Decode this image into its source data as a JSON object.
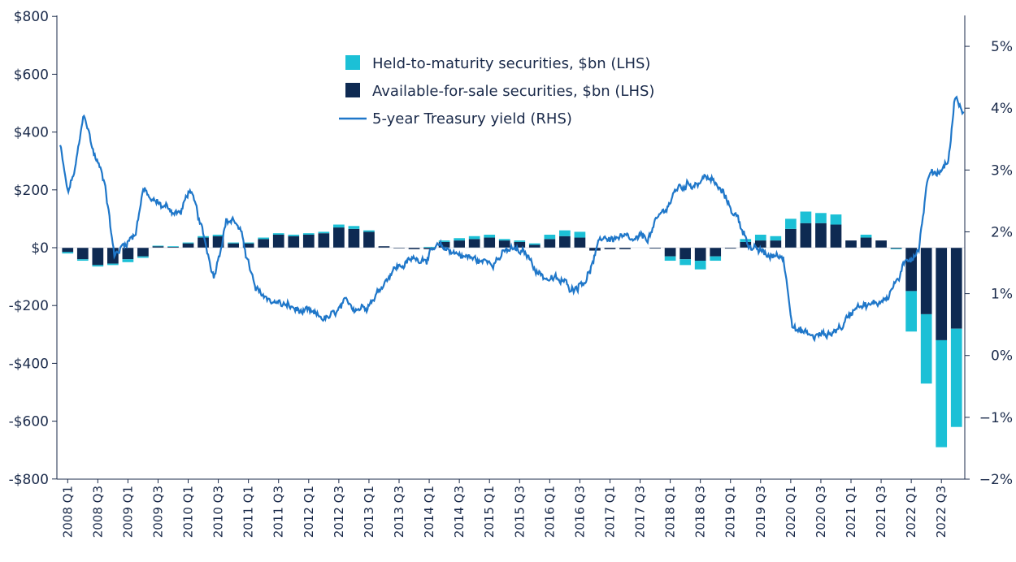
{
  "chart_data": {
    "type": "bar",
    "subtype": "stacked bar with line overlay",
    "colors": {
      "htm": "#1CC0D6",
      "afs": "#0E2A52",
      "yield": "#1F77C9",
      "axis": "#1a2a4a"
    },
    "legend": [
      {
        "key": "htm",
        "label": "Held-to-maturity securities, $bn (LHS)",
        "marker": "square"
      },
      {
        "key": "afs",
        "label": "Available-for-sale securities, $bn (LHS)",
        "marker": "square"
      },
      {
        "key": "yield",
        "label": "5-year Treasury yield (RHS)",
        "marker": "line"
      }
    ],
    "y_left": {
      "range": [
        -800,
        800
      ],
      "ticks": [
        800,
        600,
        400,
        200,
        0,
        -200,
        -400,
        -600,
        -800
      ],
      "tick_labels": [
        "$800",
        "$600",
        "$400",
        "$200",
        "$0",
        "-$200",
        "-$400",
        "-$600",
        "-$800"
      ]
    },
    "y_right": {
      "range": [
        -2,
        5.5
      ],
      "ticks": [
        5,
        4,
        3,
        2,
        1,
        0,
        -1,
        -2
      ],
      "tick_labels": [
        "5%",
        "4%",
        "3%",
        "2%",
        "1%",
        "0%",
        "−1%",
        "−2%"
      ]
    },
    "x_tick_labels": [
      "2008 Q1",
      "2008 Q3",
      "2009 Q1",
      "2009 Q3",
      "2010 Q1",
      "2010 Q3",
      "2011 Q1",
      "2011 Q3",
      "2012 Q1",
      "2012 Q3",
      "2013 Q1",
      "2013 Q3",
      "2014 Q1",
      "2014 Q3",
      "2015 Q1",
      "2015 Q3",
      "2016 Q1",
      "2016 Q3",
      "2017 Q1",
      "2017 Q3",
      "2018 Q1",
      "2018 Q3",
      "2019 Q1",
      "2019 Q3",
      "2020 Q1",
      "2020 Q3",
      "2021 Q1",
      "2021 Q3",
      "2022 Q1",
      "2022 Q3"
    ],
    "quarters": [
      "2008 Q1",
      "2008 Q2",
      "2008 Q3",
      "2008 Q4",
      "2009 Q1",
      "2009 Q2",
      "2009 Q3",
      "2009 Q4",
      "2010 Q1",
      "2010 Q2",
      "2010 Q3",
      "2010 Q4",
      "2011 Q1",
      "2011 Q2",
      "2011 Q3",
      "2011 Q4",
      "2012 Q1",
      "2012 Q2",
      "2012 Q3",
      "2012 Q4",
      "2013 Q1",
      "2013 Q2",
      "2013 Q3",
      "2013 Q4",
      "2014 Q1",
      "2014 Q2",
      "2014 Q3",
      "2014 Q4",
      "2015 Q1",
      "2015 Q2",
      "2015 Q3",
      "2015 Q4",
      "2016 Q1",
      "2016 Q2",
      "2016 Q3",
      "2016 Q4",
      "2017 Q1",
      "2017 Q2",
      "2017 Q3",
      "2017 Q4",
      "2018 Q1",
      "2018 Q2",
      "2018 Q3",
      "2018 Q4",
      "2019 Q1",
      "2019 Q2",
      "2019 Q3",
      "2019 Q4",
      "2020 Q1",
      "2020 Q2",
      "2020 Q3",
      "2020 Q4",
      "2021 Q1",
      "2021 Q2",
      "2021 Q3",
      "2021 Q4",
      "2022 Q1",
      "2022 Q2",
      "2022 Q3",
      "2022 Q4"
    ],
    "afs": [
      -15,
      -40,
      -60,
      -55,
      -40,
      -30,
      5,
      3,
      15,
      35,
      40,
      15,
      15,
      30,
      45,
      40,
      45,
      50,
      70,
      65,
      55,
      5,
      -2,
      -5,
      -5,
      20,
      25,
      30,
      35,
      25,
      20,
      10,
      30,
      40,
      35,
      -10,
      -5,
      -5,
      0,
      -3,
      -30,
      -40,
      -45,
      -30,
      -3,
      20,
      25,
      25,
      65,
      85,
      85,
      80,
      25,
      35,
      25,
      -3,
      -150,
      -230,
      -320,
      -280
    ],
    "htm": [
      -5,
      -5,
      -5,
      -5,
      -10,
      -5,
      2,
      2,
      3,
      5,
      5,
      3,
      3,
      5,
      5,
      5,
      5,
      5,
      10,
      10,
      5,
      0,
      0,
      0,
      3,
      5,
      8,
      10,
      10,
      5,
      5,
      5,
      15,
      20,
      20,
      0,
      0,
      0,
      0,
      0,
      -15,
      -20,
      -30,
      -15,
      0,
      10,
      20,
      15,
      35,
      40,
      35,
      35,
      0,
      10,
      0,
      -2,
      -140,
      -240,
      -370,
      -340
    ],
    "yield_anchors": [
      {
        "q": 0.0,
        "v": 3.4
      },
      {
        "q": 0.5,
        "v": 2.6
      },
      {
        "q": 1.0,
        "v": 3.0
      },
      {
        "q": 1.6,
        "v": 3.9
      },
      {
        "q": 2.2,
        "v": 3.3
      },
      {
        "q": 3.0,
        "v": 2.8
      },
      {
        "q": 3.6,
        "v": 1.6
      },
      {
        "q": 4.2,
        "v": 1.8
      },
      {
        "q": 5.0,
        "v": 2.0
      },
      {
        "q": 5.5,
        "v": 2.7
      },
      {
        "q": 6.0,
        "v": 2.5
      },
      {
        "q": 7.0,
        "v": 2.4
      },
      {
        "q": 8.0,
        "v": 2.3
      },
      {
        "q": 8.6,
        "v": 2.7
      },
      {
        "q": 9.4,
        "v": 2.0
      },
      {
        "q": 10.2,
        "v": 1.3
      },
      {
        "q": 11.0,
        "v": 2.2
      },
      {
        "q": 11.6,
        "v": 2.2
      },
      {
        "q": 12.2,
        "v": 1.8
      },
      {
        "q": 13.0,
        "v": 1.0
      },
      {
        "q": 14.0,
        "v": 0.9
      },
      {
        "q": 15.0,
        "v": 0.8
      },
      {
        "q": 16.0,
        "v": 0.7
      },
      {
        "q": 17.0,
        "v": 0.6
      },
      {
        "q": 18.0,
        "v": 0.6
      },
      {
        "q": 19.0,
        "v": 0.8
      },
      {
        "q": 20.0,
        "v": 0.8
      },
      {
        "q": 21.0,
        "v": 1.0
      },
      {
        "q": 22.0,
        "v": 1.4
      },
      {
        "q": 23.0,
        "v": 1.5
      },
      {
        "q": 24.0,
        "v": 1.6
      },
      {
        "q": 25.0,
        "v": 1.7
      },
      {
        "q": 26.0,
        "v": 1.7
      },
      {
        "q": 27.0,
        "v": 1.6
      },
      {
        "q": 28.0,
        "v": 1.5
      },
      {
        "q": 29.0,
        "v": 1.6
      },
      {
        "q": 30.0,
        "v": 1.7
      },
      {
        "q": 31.0,
        "v": 1.6
      },
      {
        "q": 32.0,
        "v": 1.3
      },
      {
        "q": 33.0,
        "v": 1.2
      },
      {
        "q": 34.0,
        "v": 1.1
      },
      {
        "q": 35.0,
        "v": 1.3
      },
      {
        "q": 36.0,
        "v": 1.9
      },
      {
        "q": 37.0,
        "v": 1.9
      },
      {
        "q": 38.0,
        "v": 1.8
      },
      {
        "q": 39.0,
        "v": 1.9
      },
      {
        "q": 40.0,
        "v": 2.3
      },
      {
        "q": 41.0,
        "v": 2.7
      },
      {
        "q": 42.0,
        "v": 2.8
      },
      {
        "q": 43.0,
        "v": 2.9
      },
      {
        "q": 44.0,
        "v": 2.6
      },
      {
        "q": 45.0,
        "v": 2.2
      },
      {
        "q": 46.0,
        "v": 1.7
      },
      {
        "q": 47.0,
        "v": 1.6
      },
      {
        "q": 48.0,
        "v": 1.6
      },
      {
        "q": 48.6,
        "v": 0.6
      },
      {
        "q": 49.0,
        "v": 0.4
      },
      {
        "q": 50.0,
        "v": 0.3
      },
      {
        "q": 51.0,
        "v": 0.35
      },
      {
        "q": 52.0,
        "v": 0.5
      },
      {
        "q": 53.0,
        "v": 0.9
      },
      {
        "q": 54.0,
        "v": 0.8
      },
      {
        "q": 55.0,
        "v": 1.0
      },
      {
        "q": 56.0,
        "v": 1.4
      },
      {
        "q": 57.0,
        "v": 1.8
      },
      {
        "q": 57.6,
        "v": 2.9
      },
      {
        "q": 58.4,
        "v": 3.0
      },
      {
        "q": 59.0,
        "v": 3.2
      },
      {
        "q": 59.4,
        "v": 4.2
      },
      {
        "q": 59.8,
        "v": 4.0
      },
      {
        "q": 60.0,
        "v": 3.9
      }
    ]
  }
}
